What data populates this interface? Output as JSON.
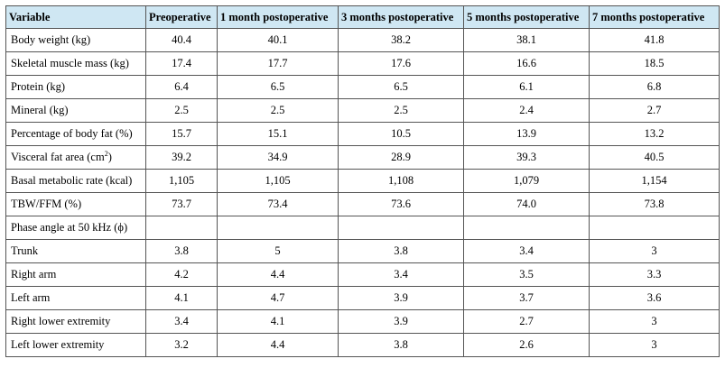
{
  "table": {
    "headers": [
      "Variable",
      "Preoperative",
      "1 month postoperative",
      "3 months postoperative",
      "5 months postoperative",
      "7 months postoperative"
    ],
    "rows": [
      {
        "label": "Body weight (kg)",
        "values": [
          "40.4",
          "40.1",
          "38.2",
          "38.1",
          "41.8"
        ]
      },
      {
        "label": "Skeletal muscle mass (kg)",
        "values": [
          "17.4",
          "17.7",
          "17.6",
          "16.6",
          "18.5"
        ]
      },
      {
        "label": "Protein (kg)",
        "values": [
          "6.4",
          "6.5",
          "6.5",
          "6.1",
          "6.8"
        ]
      },
      {
        "label": "Mineral (kg)",
        "values": [
          "2.5",
          "2.5",
          "2.5",
          "2.4",
          "2.7"
        ]
      },
      {
        "label": "Percentage of body fat (%)",
        "values": [
          "15.7",
          "15.1",
          "10.5",
          "13.9",
          "13.2"
        ]
      },
      {
        "label": "Visceral fat area (cm",
        "label_sup": "2",
        "label_suffix": ")",
        "values": [
          "39.2",
          "34.9",
          "28.9",
          "39.3",
          "40.5"
        ]
      },
      {
        "label": "Basal metabolic rate (kcal)",
        "values": [
          "1,105",
          "1,105",
          "1,108",
          "1,079",
          "1,154"
        ]
      },
      {
        "label": "TBW/FFM (%)",
        "values": [
          "73.7",
          "73.4",
          "73.6",
          "74.0",
          "73.8"
        ]
      },
      {
        "label": "Phase angle at 50 kHz (ϕ)",
        "values": [
          "",
          "",
          "",
          "",
          ""
        ]
      },
      {
        "label": "Trunk",
        "values": [
          "3.8",
          "5",
          "3.8",
          "3.4",
          "3"
        ]
      },
      {
        "label": "Right arm",
        "values": [
          "4.2",
          "4.4",
          "3.4",
          "3.5",
          "3.3"
        ]
      },
      {
        "label": "Left arm",
        "values": [
          "4.1",
          "4.7",
          "3.9",
          "3.7",
          "3.6"
        ]
      },
      {
        "label": "Right lower extremity",
        "values": [
          "3.4",
          "4.1",
          "3.9",
          "2.7",
          "3"
        ]
      },
      {
        "label": "Left lower extremity",
        "values": [
          "3.2",
          "4.4",
          "3.8",
          "2.6",
          "3"
        ]
      }
    ]
  },
  "colors": {
    "header_bg": "#cfe7f3",
    "border": "#555555",
    "text": "#000000"
  }
}
